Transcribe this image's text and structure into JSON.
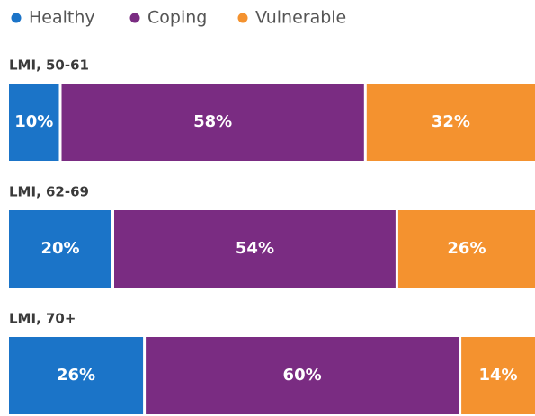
{
  "chart_data": {
    "type": "stacked-bar-horizontal",
    "categories": [
      "LMI, 50-61",
      "LMI, 62-69",
      "LMI, 70+"
    ],
    "xlim": [
      0,
      100
    ],
    "series": [
      {
        "name": "Healthy",
        "color": "#1b74c8",
        "values": [
          10,
          20,
          26
        ],
        "value_labels": [
          "10%",
          "20%",
          "26%"
        ]
      },
      {
        "name": "Coping",
        "color": "#7a2c82",
        "values": [
          58,
          54,
          60
        ],
        "value_labels": [
          "58%",
          "54%",
          "60%"
        ]
      },
      {
        "name": "Vulnerable",
        "color": "#f4922f",
        "values": [
          32,
          26,
          14
        ],
        "value_labels": [
          "32%",
          "26%",
          "14%"
        ]
      }
    ]
  }
}
